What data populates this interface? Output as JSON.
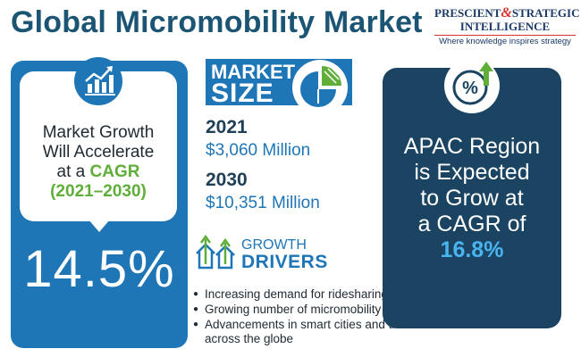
{
  "title": "Global Micromobility Market",
  "logo": {
    "line1_a": "PRESCIENT",
    "line1_amp": "&",
    "line1_b": "STRATEGIC",
    "line2": "INTELLIGENCE",
    "tagline": "Where knowledge inspires strategy"
  },
  "growth": {
    "line1": "Market Growth",
    "line2": "Will Accelerate",
    "line3_prefix": "at a ",
    "cagr_word": "CAGR",
    "period": "(2021–2030)",
    "cagr_value": "14.5%",
    "icon": "growth-chart-icon"
  },
  "market_size": {
    "label1": "MARKET",
    "label2": "SIZE",
    "icon": "pie-chart-icon",
    "entries": [
      {
        "year": "2021",
        "value": "$3,060 Million"
      },
      {
        "year": "2030",
        "value": "$10,351 Million"
      }
    ]
  },
  "growth_drivers": {
    "label1": "GROWTH",
    "label2": "DRIVERS",
    "icon": "house-arrows-icon",
    "items": [
      "Increasing demand for ridesharing in metropolitan areas.",
      "Growing number of micromobility vehicles",
      "Advancements in smart cities and the automotive infrastructure across the globe"
    ]
  },
  "apac": {
    "line1": "APAC Region",
    "line2": "is Expected",
    "line3": "to Grow at",
    "line4": "a CAGR of",
    "value": "16.8%",
    "icon": "percent-arrow-icon"
  },
  "colors": {
    "primary_blue": "#1e76b7",
    "dark_navy": "#1b4462",
    "title_blue": "#1b5573",
    "accent_green": "#5fae3a",
    "accent_light_blue": "#49b4f0",
    "logo_red": "#d6322c"
  }
}
